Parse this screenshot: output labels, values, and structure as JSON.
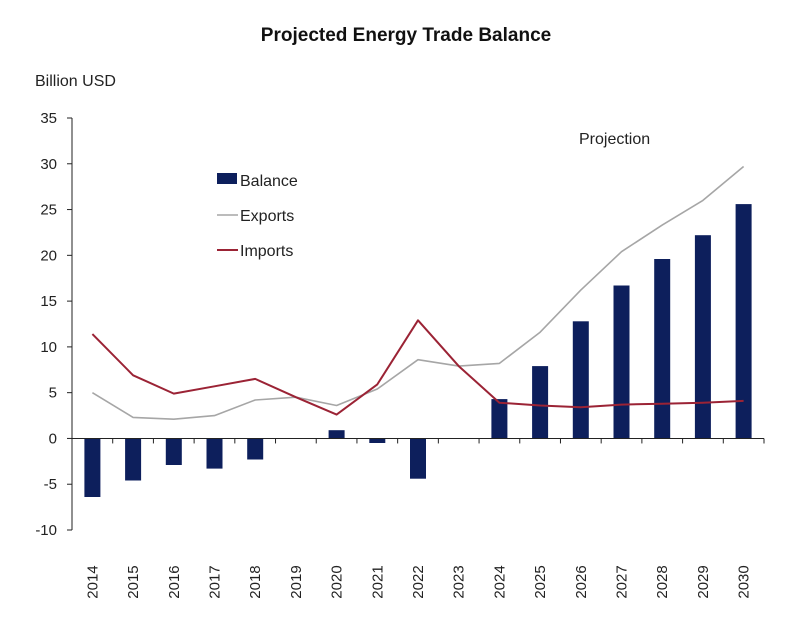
{
  "chart_data": {
    "type": "bar",
    "title": "Projected Energy Trade Balance",
    "ylabel": "Billion USD",
    "xlabel": "",
    "ylim": [
      -10,
      35
    ],
    "yticks": [
      -10,
      -5,
      0,
      5,
      10,
      15,
      20,
      25,
      30,
      35
    ],
    "ytick_labels": [
      "-10",
      "-5",
      "0",
      "5",
      "10",
      "15",
      "20",
      "25",
      "30",
      "35"
    ],
    "categories": [
      "2014",
      "2015",
      "2016",
      "2017",
      "2018",
      "2019",
      "2020",
      "2021",
      "2022",
      "2023",
      "2024",
      "2025",
      "2026",
      "2027",
      "2028",
      "2029",
      "2030"
    ],
    "annotation": "Projection",
    "grid": false,
    "legend_position": "upper-left",
    "series": [
      {
        "name": "Balance",
        "kind": "bar",
        "color": "#0d1f5c",
        "values": [
          -6.4,
          -4.6,
          -2.9,
          -3.3,
          -2.3,
          0.0,
          0.9,
          -0.5,
          -4.4,
          0.0,
          4.3,
          7.9,
          12.8,
          16.7,
          19.6,
          22.2,
          25.6
        ]
      },
      {
        "name": "Exports",
        "kind": "line",
        "color": "#a6a6a6",
        "values": [
          5.0,
          2.3,
          2.1,
          2.5,
          4.2,
          4.5,
          3.6,
          5.4,
          8.6,
          7.9,
          8.2,
          11.6,
          16.2,
          20.4,
          23.3,
          26.0,
          29.7
        ]
      },
      {
        "name": "Imports",
        "kind": "line",
        "color": "#9b2335",
        "values": [
          11.4,
          6.9,
          4.9,
          5.7,
          6.5,
          4.5,
          2.6,
          5.9,
          12.9,
          7.9,
          3.9,
          3.6,
          3.4,
          3.7,
          3.8,
          3.9,
          4.1
        ]
      }
    ]
  }
}
